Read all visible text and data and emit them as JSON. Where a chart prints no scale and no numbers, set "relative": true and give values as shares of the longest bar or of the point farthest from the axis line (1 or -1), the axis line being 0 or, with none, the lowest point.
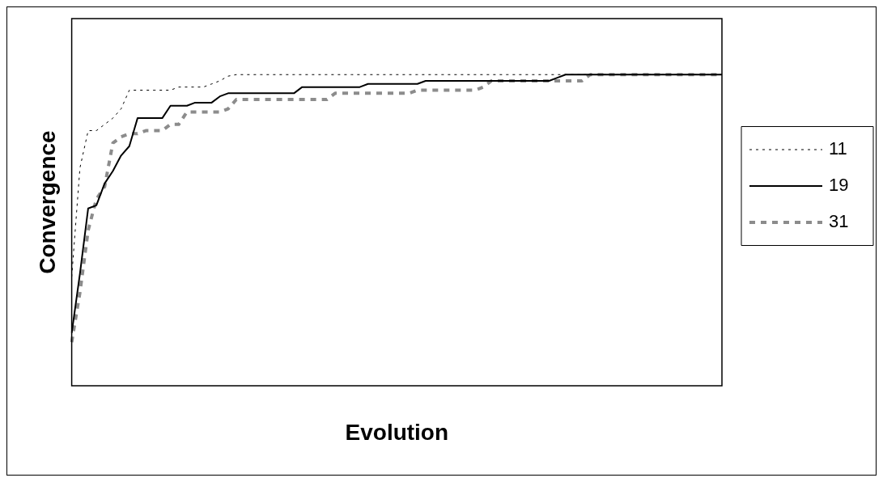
{
  "chart_data": {
    "type": "line",
    "relative": true,
    "xlabel": "Evolution",
    "ylabel": "Convergence",
    "legend": "right",
    "categories": [
      null,
      null,
      null,
      null,
      null,
      null,
      null,
      null,
      null,
      null,
      null,
      null,
      null,
      null,
      null,
      null,
      null,
      null,
      null,
      null,
      null,
      null,
      null,
      null,
      null,
      null,
      null,
      null,
      null,
      null,
      null,
      null,
      null,
      null,
      null,
      null,
      null,
      null,
      null,
      null,
      null,
      null,
      null,
      null,
      null,
      null,
      null,
      null,
      null,
      null,
      null,
      null,
      null,
      null,
      null,
      null,
      null,
      null,
      null,
      null,
      null,
      null,
      null,
      null,
      null,
      null,
      null,
      null,
      null,
      null,
      null,
      null,
      null,
      null,
      null,
      null,
      null,
      null,
      null,
      null
    ],
    "series": [
      {
        "name": "11",
        "color": "#000000",
        "line_style": "dotted",
        "values": [
          0.35,
          0.7,
          0.82,
          0.82,
          0.84,
          0.86,
          0.89,
          0.95,
          0.95,
          0.95,
          0.95,
          0.95,
          0.95,
          0.96,
          0.96,
          0.96,
          0.96,
          0.97,
          0.98,
          0.995,
          1,
          1,
          1,
          1,
          1,
          1,
          1,
          1,
          1,
          1,
          1,
          1,
          1,
          1,
          1,
          1,
          1,
          1,
          1,
          1,
          1,
          1,
          1,
          1,
          1,
          1,
          1,
          1,
          1,
          1,
          1,
          1,
          1,
          1,
          1,
          1,
          1,
          1,
          1,
          1,
          1,
          1,
          1,
          1,
          1,
          1,
          1,
          1,
          1,
          1,
          1,
          1,
          1,
          1,
          1,
          1,
          1,
          1,
          1,
          1
        ]
      },
      {
        "name": "19",
        "color": "#000000",
        "line_style": "solid",
        "values": [
          0.17,
          0.36,
          0.57,
          0.58,
          0.65,
          0.69,
          0.74,
          0.77,
          0.86,
          0.86,
          0.86,
          0.86,
          0.9,
          0.9,
          0.9,
          0.91,
          0.91,
          0.91,
          0.93,
          0.94,
          0.94,
          0.94,
          0.94,
          0.94,
          0.94,
          0.94,
          0.94,
          0.94,
          0.96,
          0.96,
          0.96,
          0.96,
          0.96,
          0.96,
          0.96,
          0.96,
          0.97,
          0.97,
          0.97,
          0.97,
          0.97,
          0.97,
          0.97,
          0.98,
          0.98,
          0.98,
          0.98,
          0.98,
          0.98,
          0.98,
          0.98,
          0.98,
          0.98,
          0.98,
          0.98,
          0.98,
          0.98,
          0.98,
          0.98,
          0.99,
          1,
          1,
          1,
          1,
          1,
          1,
          1,
          1,
          1,
          1,
          1,
          1,
          1,
          1,
          1,
          1,
          1,
          1,
          1,
          1
        ]
      },
      {
        "name": "31",
        "color": "#8c8c8c",
        "line_style": "dashed",
        "values": [
          0.14,
          0.3,
          0.5,
          0.6,
          0.64,
          0.78,
          0.8,
          0.81,
          0.81,
          0.82,
          0.82,
          0.82,
          0.84,
          0.84,
          0.88,
          0.88,
          0.88,
          0.88,
          0.88,
          0.89,
          0.92,
          0.92,
          0.92,
          0.92,
          0.92,
          0.92,
          0.92,
          0.92,
          0.92,
          0.92,
          0.92,
          0.92,
          0.94,
          0.94,
          0.94,
          0.94,
          0.94,
          0.94,
          0.94,
          0.94,
          0.94,
          0.94,
          0.95,
          0.95,
          0.95,
          0.95,
          0.95,
          0.95,
          0.95,
          0.95,
          0.96,
          0.98,
          0.98,
          0.98,
          0.98,
          0.98,
          0.98,
          0.98,
          0.98,
          0.98,
          0.98,
          0.98,
          0.98,
          1,
          1,
          1,
          1,
          1,
          1,
          1,
          1,
          1,
          1,
          1,
          1,
          1,
          1,
          1,
          1,
          1
        ]
      }
    ]
  }
}
